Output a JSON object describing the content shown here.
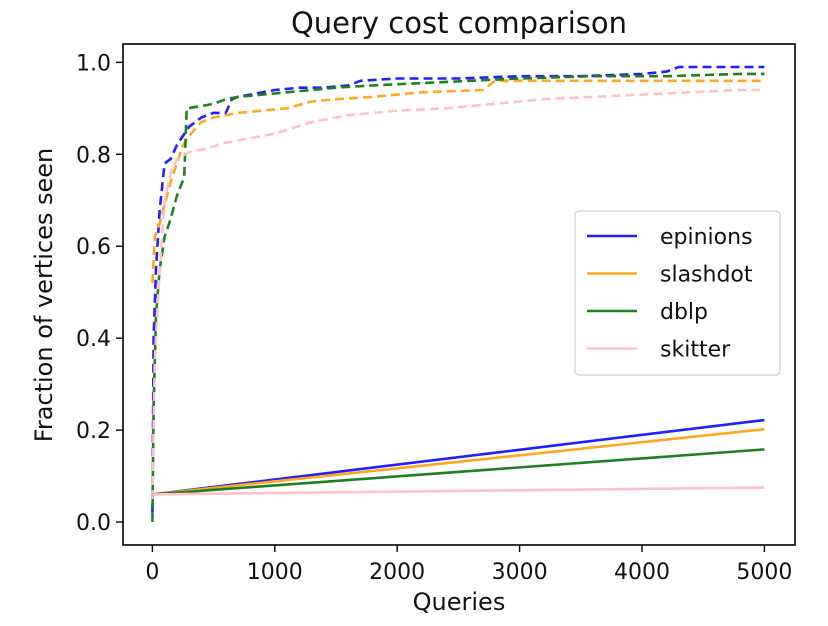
{
  "chart_data": {
    "type": "line",
    "title": "Query cost comparison",
    "xlabel": "Queries",
    "ylabel": "Fraction of vertices seen",
    "xlim": [
      -240,
      5250
    ],
    "ylim": [
      -0.05,
      1.04
    ],
    "xticks": [
      0,
      1000,
      2000,
      3000,
      4000,
      5000
    ],
    "yticks": [
      0.0,
      0.2,
      0.4,
      0.6,
      0.8,
      1.0
    ],
    "xtick_labels": [
      "0",
      "1000",
      "2000",
      "3000",
      "4000",
      "5000"
    ],
    "ytick_labels": [
      "0.0",
      "0.2",
      "0.4",
      "0.6",
      "0.8",
      "1.0"
    ],
    "grid": false,
    "legend": {
      "position": "center-right",
      "entries": [
        {
          "label": "epinions",
          "color": "#1f1fff"
        },
        {
          "label": "slashdot",
          "color": "#ffa51f"
        },
        {
          "label": "dblp",
          "color": "#1e801e"
        },
        {
          "label": "skitter",
          "color": "#ffc0cb"
        }
      ]
    },
    "series": [
      {
        "name": "epinions",
        "color": "#1f1fff",
        "style": "dashed",
        "x": [
          0,
          10,
          30,
          60,
          100,
          150,
          200,
          250,
          300,
          400,
          500,
          600,
          650,
          700,
          800,
          900,
          1000,
          1200,
          1400,
          1600,
          1700,
          2000,
          2500,
          3000,
          3500,
          4000,
          4200,
          4300,
          4600,
          4800,
          5000
        ],
        "y": [
          0.02,
          0.4,
          0.55,
          0.68,
          0.78,
          0.79,
          0.82,
          0.84,
          0.86,
          0.88,
          0.89,
          0.89,
          0.92,
          0.925,
          0.93,
          0.935,
          0.94,
          0.945,
          0.945,
          0.95,
          0.96,
          0.965,
          0.965,
          0.97,
          0.97,
          0.975,
          0.98,
          0.99,
          0.99,
          0.99,
          0.99
        ]
      },
      {
        "name": "slashdot",
        "color": "#ffa51f",
        "style": "dashed",
        "x": [
          0,
          20,
          60,
          100,
          150,
          200,
          250,
          300,
          400,
          500,
          700,
          900,
          1100,
          1300,
          1500,
          1800,
          2200,
          2700,
          2800,
          3200,
          3600,
          4000,
          4400,
          4800,
          5000
        ],
        "y": [
          0.52,
          0.62,
          0.65,
          0.69,
          0.74,
          0.78,
          0.82,
          0.84,
          0.87,
          0.88,
          0.89,
          0.895,
          0.9,
          0.915,
          0.92,
          0.925,
          0.935,
          0.94,
          0.96,
          0.96,
          0.96,
          0.96,
          0.96,
          0.96,
          0.96
        ]
      },
      {
        "name": "dblp",
        "color": "#1e801e",
        "style": "dashed",
        "x": [
          0,
          10,
          30,
          60,
          100,
          150,
          200,
          260,
          280,
          400,
          500,
          600,
          700,
          900,
          1100,
          1300,
          1500,
          1800,
          2200,
          2600,
          3000,
          3600,
          4200,
          4800,
          5000
        ],
        "y": [
          0.0,
          0.25,
          0.45,
          0.55,
          0.62,
          0.66,
          0.71,
          0.75,
          0.9,
          0.905,
          0.91,
          0.92,
          0.925,
          0.93,
          0.935,
          0.94,
          0.945,
          0.95,
          0.955,
          0.96,
          0.965,
          0.97,
          0.97,
          0.975,
          0.975
        ]
      },
      {
        "name": "skitter",
        "color": "#ffc0cb",
        "style": "dashed",
        "x": [
          0,
          20,
          60,
          100,
          150,
          200,
          300,
          400,
          600,
          800,
          1000,
          1300,
          1600,
          2000,
          2400,
          2800,
          3200,
          3600,
          4000,
          4400,
          4800,
          5000
        ],
        "y": [
          0.05,
          0.35,
          0.55,
          0.7,
          0.76,
          0.79,
          0.805,
          0.81,
          0.825,
          0.835,
          0.845,
          0.87,
          0.885,
          0.895,
          0.9,
          0.91,
          0.92,
          0.925,
          0.93,
          0.935,
          0.94,
          0.94
        ]
      },
      {
        "name": "epinions",
        "color": "#1f1fff",
        "style": "solid",
        "x": [
          0,
          5000
        ],
        "y": [
          0.06,
          0.222
        ]
      },
      {
        "name": "slashdot",
        "color": "#ffa51f",
        "style": "solid",
        "x": [
          0,
          5000
        ],
        "y": [
          0.06,
          0.202
        ]
      },
      {
        "name": "dblp",
        "color": "#1e801e",
        "style": "solid",
        "x": [
          0,
          5000
        ],
        "y": [
          0.06,
          0.158
        ]
      },
      {
        "name": "skitter",
        "color": "#ffc0cb",
        "style": "solid",
        "x": [
          0,
          5000
        ],
        "y": [
          0.06,
          0.075
        ]
      }
    ]
  }
}
